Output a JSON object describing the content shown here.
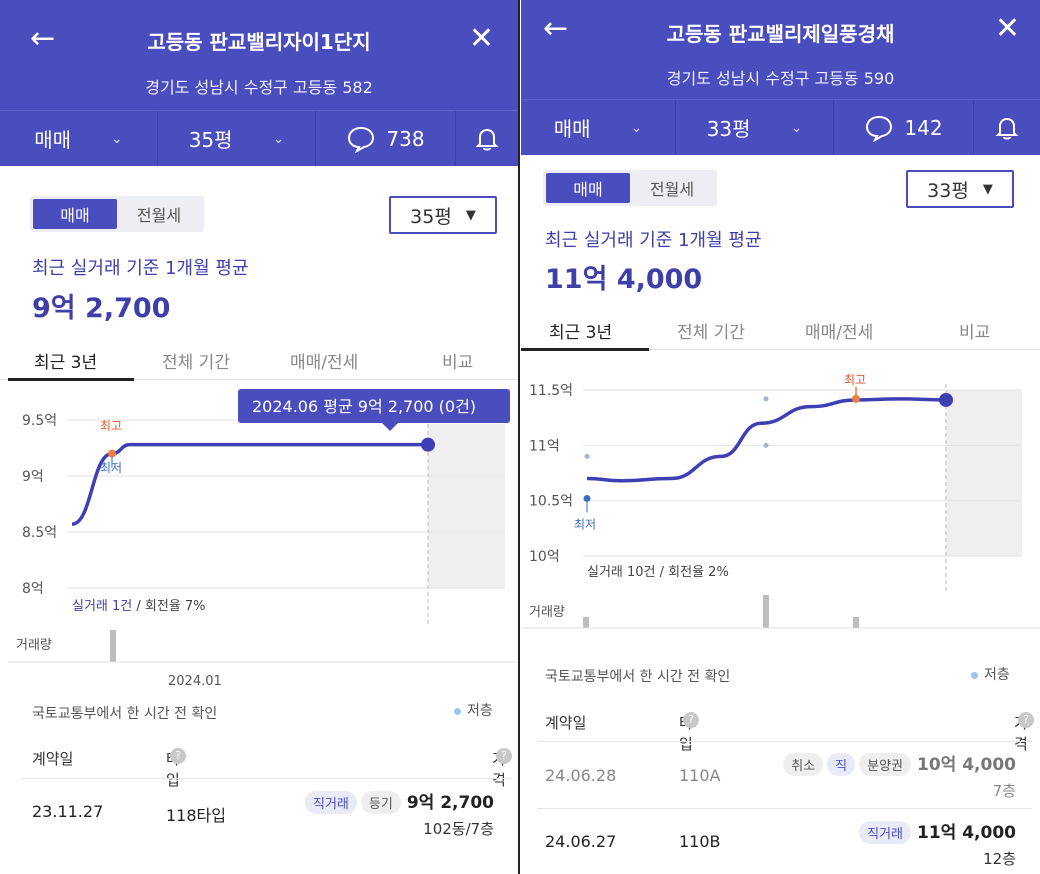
{
  "left": {
    "header": {
      "title": "고등동 판교밸리자이1단지",
      "address": "경기도 성남시 수정구 고등동 582",
      "deal_type": "매매",
      "size": "35평",
      "comments": "738",
      "back_icon": "arrow-left-icon",
      "close_icon": "close-icon",
      "bell_icon": "bell-icon"
    },
    "segment": {
      "options": [
        "매매",
        "전월세"
      ],
      "selected": "매매"
    },
    "size_select": "35평",
    "avg_label": "최근 실거래 기준 1개월 평균",
    "avg_price": "9억 2,700",
    "tabs": [
      "최근 3년",
      "전체 기간",
      "매매/전세",
      "비교"
    ],
    "active_tab": "최근 3년",
    "chart": {
      "y_ticks": [
        "9.5억",
        "9억",
        "8.5억",
        "8억"
      ],
      "tooltip": "2024.06 평균 9억 2,700 (0건)",
      "max_label": "최고",
      "min_label": "최저",
      "summary_count": "실거래 1건",
      "summary_turnover": " / 회전율 7%",
      "volume_label": "거래량",
      "x_label": "2024.01"
    },
    "chart_data": {
      "type": "line",
      "ylim": [
        8,
        9.5
      ],
      "y_unit": "억",
      "series": [
        {
          "values": [
            8.57,
            9.2,
            9.28,
            9.28,
            9.28,
            9.28,
            9.28,
            9.28
          ]
        }
      ],
      "max_point": 9.28,
      "volume": [
        1
      ]
    },
    "source_note": "국토교통부에서 한 시간 전 확인",
    "legend": "저층",
    "table": {
      "headers": [
        "계약일",
        "타입",
        "가격"
      ],
      "rows": [
        {
          "date": "23.11.27",
          "type": "118타입",
          "badges": [
            "직거래",
            "등기"
          ],
          "price": "9억 2,700",
          "floor": "102동/7층"
        }
      ]
    }
  },
  "right": {
    "header": {
      "title": "고등동 판교밸리제일풍경채",
      "address": "경기도 성남시 수정구 고등동 590",
      "deal_type": "매매",
      "size": "33평",
      "comments": "142",
      "back_icon": "arrow-left-icon",
      "close_icon": "close-icon",
      "bell_icon": "bell-icon"
    },
    "segment": {
      "options": [
        "매매",
        "전월세"
      ],
      "selected": "매매"
    },
    "size_select": "33평",
    "avg_label": "최근 실거래 기준 1개월 평균",
    "avg_price": "11억 4,000",
    "tabs": [
      "최근 3년",
      "전체 기간",
      "매매/전세",
      "비교"
    ],
    "active_tab": "최근 3년",
    "chart": {
      "y_ticks": [
        "11.5억",
        "11억",
        "10.5억",
        "10억"
      ],
      "max_label": "최고",
      "min_label": "최저",
      "summary_count": "실거래 10건",
      "summary_turnover": " / 회전율 2%",
      "volume_label": "거래량"
    },
    "chart_data": {
      "type": "line",
      "ylim": [
        10,
        11.5
      ],
      "y_unit": "억",
      "series": [
        {
          "values": [
            10.7,
            10.68,
            10.7,
            10.9,
            11.2,
            11.35,
            11.41,
            11.42,
            11.41
          ]
        }
      ],
      "scatter": [
        10.9,
        10.52,
        11.42,
        11.0
      ],
      "volume": [
        1,
        3,
        1
      ]
    },
    "source_note": "국토교통부에서 한 시간 전 확인",
    "legend": "저층",
    "table": {
      "headers": [
        "계약일",
        "타입",
        "가격"
      ],
      "rows": [
        {
          "date": "24.06.28",
          "type": "110A",
          "badges": [
            "취소",
            "직",
            "분양권"
          ],
          "price": "10억 4,000",
          "floor": "7층"
        },
        {
          "date": "24.06.27",
          "type": "110B",
          "badges": [
            "직거래"
          ],
          "price": "11억 4,000",
          "floor": "12층"
        }
      ]
    }
  }
}
